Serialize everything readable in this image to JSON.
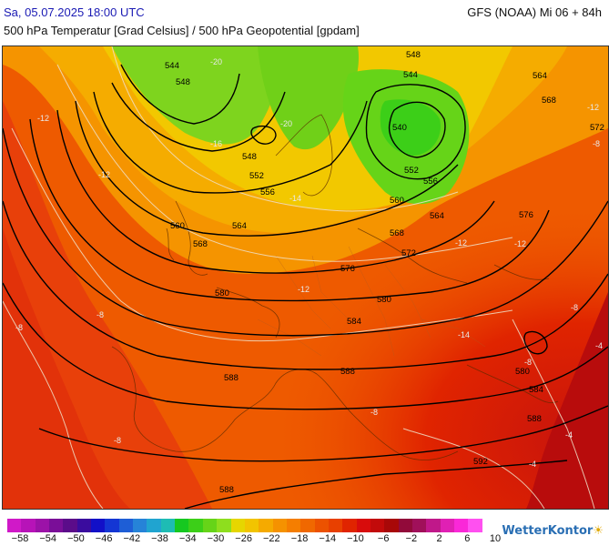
{
  "header": {
    "valid_time": "Sa, 05.07.2025 18:00 UTC",
    "model_run": "GFS (NOAA) Mi 06 + 84h",
    "subtitle": "500 hPa Temperatur [Grad Celsius] / 500 hPa Geopotential [gpdam]"
  },
  "legend": {
    "colors": [
      "#d019c8",
      "#b713b8",
      "#9c12a8",
      "#7a0e98",
      "#5b0c8a",
      "#3a0c9e",
      "#1210c8",
      "#1436d4",
      "#1e5ed6",
      "#2683d8",
      "#20a4d0",
      "#1ebcb4",
      "#16c820",
      "#3ccf18",
      "#66d418",
      "#8ede1e",
      "#e6d600",
      "#f2c400",
      "#f5aa00",
      "#f59200",
      "#f57e00",
      "#f06800",
      "#ec5200",
      "#e84000",
      "#e02400",
      "#d80c0c",
      "#c20a0a",
      "#a80808",
      "#920a3a",
      "#a0105a",
      "#c0188a",
      "#e020b4",
      "#fa28d8",
      "#ff50f0"
    ],
    "ticks": [
      "−58",
      "−54",
      "−50",
      "−46",
      "−42",
      "−38",
      "−34",
      "−30",
      "−26",
      "−22",
      "−18",
      "−14",
      "−10",
      "−6",
      "−2",
      "2",
      "6",
      "10"
    ]
  },
  "map": {
    "geopotential_labels": [
      "544",
      "548",
      "540",
      "548",
      "544",
      "564",
      "568",
      "572",
      "548",
      "552",
      "556",
      "552",
      "556",
      "560",
      "560",
      "564",
      "568",
      "564",
      "576",
      "568",
      "572",
      "576",
      "580",
      "580",
      "584",
      "588",
      "588",
      "584",
      "580",
      "588",
      "592",
      "588"
    ],
    "temperature_labels": [
      "-20",
      "-20",
      "-16",
      "-12",
      "-12",
      "-14",
      "-12",
      "-12",
      "-8",
      "-8",
      "-8",
      "-8",
      "-12",
      "-12",
      "-14",
      "-4",
      "-8",
      "-8",
      "-8",
      "-4",
      "-4"
    ]
  },
  "logo": {
    "text": "WetterKontor",
    "mark": "☀"
  }
}
